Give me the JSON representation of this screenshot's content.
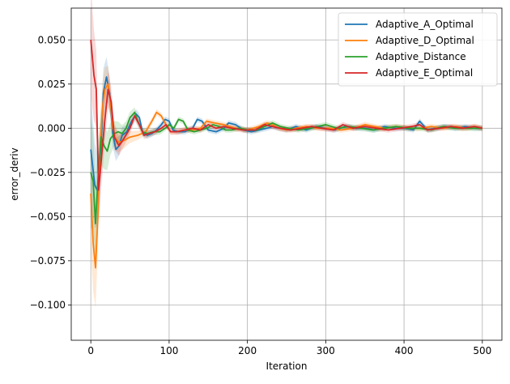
{
  "chart_data": {
    "type": "line",
    "xlabel": "Iteration",
    "ylabel": "error_deriv",
    "xlim": [
      -25,
      525
    ],
    "ylim": [
      -0.12,
      0.068
    ],
    "x_ticks": [
      0,
      100,
      200,
      300,
      400,
      500
    ],
    "x_tick_labels": [
      "0",
      "100",
      "200",
      "300",
      "400",
      "500"
    ],
    "y_ticks": [
      -0.1,
      -0.075,
      -0.05,
      -0.025,
      0.0,
      0.025,
      0.05
    ],
    "y_tick_labels": [
      "−0.100",
      "−0.075",
      "−0.050",
      "−0.025",
      "0.000",
      "0.025",
      "0.050"
    ],
    "grid": true,
    "legend_position": "top-right",
    "series": [
      {
        "name": "Adaptive_A_Optimal",
        "color": "#1f77b4",
        "x": [
          0,
          5,
          9,
          13,
          16,
          20,
          24,
          28,
          32,
          36,
          40,
          46,
          52,
          58,
          62,
          66,
          72,
          78,
          84,
          90,
          95,
          100,
          105,
          112,
          120,
          130,
          136,
          142,
          150,
          160,
          170,
          176,
          185,
          195,
          205,
          215,
          225,
          232,
          240,
          250,
          262,
          275,
          288,
          300,
          312,
          325,
          338,
          350,
          362,
          375,
          388,
          400,
          412,
          420,
          430,
          440,
          452,
          465,
          478,
          490,
          500
        ],
        "values": [
          -0.012,
          -0.032,
          -0.036,
          -0.01,
          0.02,
          0.029,
          0.02,
          -0.003,
          -0.012,
          -0.01,
          -0.004,
          -0.002,
          0.004,
          0.008,
          0.006,
          -0.002,
          -0.004,
          -0.003,
          -0.001,
          0.002,
          0.005,
          0.004,
          -0.001,
          -0.002,
          -0.002,
          0.0,
          0.005,
          0.004,
          -0.001,
          -0.002,
          0.0,
          0.003,
          0.002,
          -0.001,
          -0.002,
          -0.001,
          0.0,
          0.001,
          0.0,
          -0.001,
          0.001,
          -0.001,
          0.001,
          0.0,
          -0.001,
          0.001,
          0.0,
          0.0,
          -0.001,
          0.001,
          0.0,
          0.0,
          -0.001,
          0.004,
          -0.001,
          0.0,
          0.001,
          0.0,
          0.001,
          0.0,
          0.0
        ]
      },
      {
        "name": "Adaptive_D_Optimal",
        "color": "#ff7f0e",
        "x": [
          0,
          3,
          6,
          9,
          12,
          15,
          18,
          22,
          25,
          28,
          32,
          36,
          42,
          50,
          60,
          70,
          78,
          84,
          90,
          96,
          102,
          110,
          120,
          130,
          140,
          148,
          158,
          170,
          185,
          200,
          215,
          225,
          232,
          240,
          250,
          262,
          275,
          290,
          305,
          320,
          335,
          350,
          362,
          375,
          390,
          405,
          420,
          435,
          450,
          465,
          480,
          490,
          500
        ],
        "values": [
          -0.037,
          -0.065,
          -0.079,
          -0.05,
          -0.01,
          0.012,
          0.022,
          0.025,
          0.015,
          0.0,
          -0.006,
          -0.008,
          -0.007,
          -0.005,
          -0.004,
          -0.002,
          0.004,
          0.009,
          0.007,
          0.002,
          -0.002,
          -0.002,
          -0.001,
          -0.001,
          0.0,
          0.004,
          0.003,
          0.002,
          0.0,
          -0.001,
          0.001,
          0.003,
          0.002,
          0.0,
          -0.001,
          0.0,
          0.001,
          0.0,
          0.0,
          -0.001,
          0.0,
          0.002,
          0.001,
          0.0,
          0.001,
          0.0,
          0.0,
          0.001,
          0.0,
          0.001,
          0.0,
          0.001,
          0.0
        ]
      },
      {
        "name": "Adaptive_Distance",
        "color": "#2ca02c",
        "x": [
          0,
          3,
          6,
          9,
          13,
          17,
          21,
          25,
          30,
          35,
          40,
          45,
          50,
          56,
          60,
          66,
          72,
          80,
          88,
          95,
          100,
          106,
          112,
          118,
          124,
          132,
          140,
          148,
          156,
          164,
          172,
          180,
          190,
          200,
          212,
          222,
          232,
          242,
          252,
          265,
          280,
          300,
          315,
          330,
          345,
          360,
          375,
          390,
          405,
          420,
          435,
          450,
          465,
          480,
          500
        ],
        "values": [
          -0.025,
          -0.03,
          -0.054,
          -0.03,
          -0.005,
          -0.01,
          -0.013,
          -0.006,
          -0.003,
          -0.002,
          -0.003,
          0.0,
          0.006,
          0.009,
          0.004,
          -0.002,
          -0.003,
          -0.002,
          -0.002,
          0.0,
          0.002,
          0.0,
          0.005,
          0.004,
          -0.001,
          -0.002,
          -0.001,
          0.0,
          0.002,
          0.001,
          -0.001,
          -0.001,
          0.0,
          -0.001,
          -0.001,
          0.001,
          0.003,
          0.001,
          0.0,
          -0.001,
          0.0,
          0.002,
          0.0,
          0.001,
          0.0,
          -0.001,
          0.0,
          0.001,
          0.0,
          0.0,
          -0.001,
          0.001,
          0.0,
          0.0,
          0.0
        ]
      },
      {
        "name": "Adaptive_E_Optimal",
        "color": "#d62728",
        "x": [
          0,
          4,
          7,
          10,
          14,
          18,
          22,
          26,
          30,
          36,
          42,
          50,
          56,
          62,
          68,
          74,
          82,
          90,
          96,
          102,
          110,
          120,
          130,
          140,
          150,
          160,
          170,
          180,
          195,
          210,
          222,
          232,
          242,
          255,
          270,
          282,
          295,
          310,
          322,
          335,
          350,
          365,
          380,
          395,
          410,
          420,
          430,
          445,
          460,
          475,
          490,
          500
        ],
        "values": [
          0.05,
          0.03,
          0.022,
          -0.035,
          -0.015,
          0.005,
          0.022,
          0.015,
          -0.005,
          -0.01,
          -0.006,
          0.0,
          0.007,
          0.002,
          -0.004,
          -0.003,
          -0.002,
          0.0,
          0.002,
          -0.002,
          -0.002,
          -0.001,
          0.0,
          -0.001,
          0.002,
          0.0,
          0.001,
          0.0,
          -0.001,
          -0.001,
          0.002,
          0.001,
          0.0,
          -0.001,
          0.0,
          0.001,
          0.0,
          -0.001,
          0.002,
          0.0,
          0.001,
          0.0,
          -0.001,
          0.0,
          0.001,
          0.002,
          -0.001,
          0.0,
          0.001,
          0.0,
          0.001,
          0.0
        ]
      }
    ]
  }
}
